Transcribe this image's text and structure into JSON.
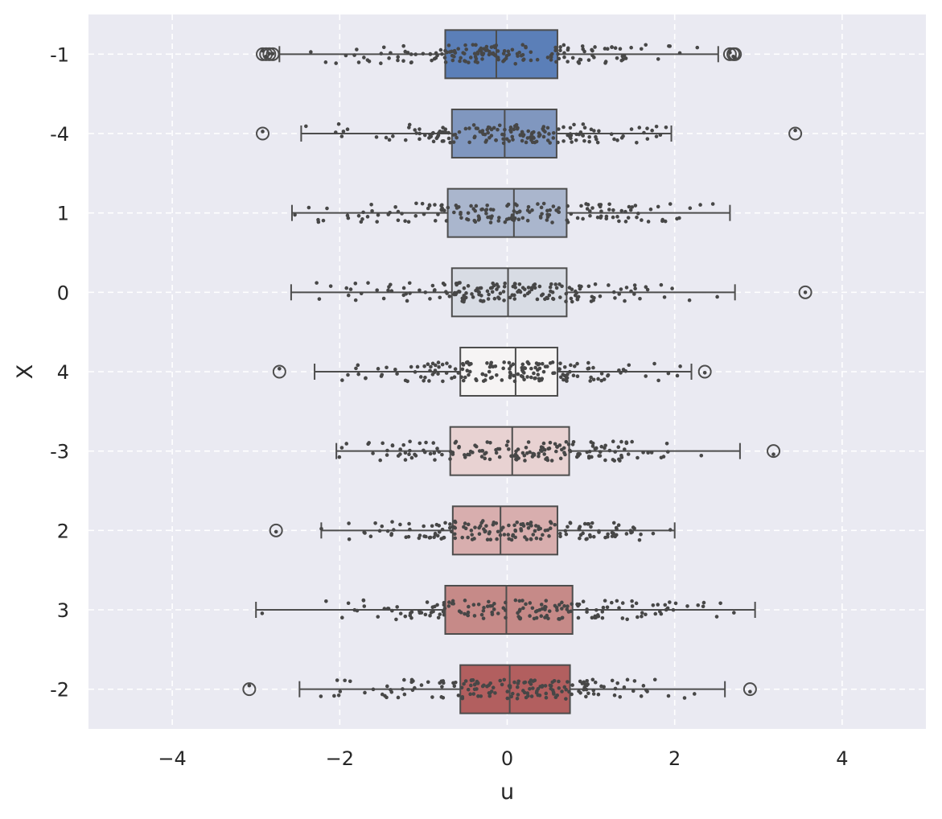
{
  "chart_data": {
    "type": "box",
    "orientation": "horizontal",
    "xlabel": "u",
    "ylabel": "X",
    "xlim": [
      -5,
      5
    ],
    "x_ticks": [
      -4,
      -2,
      0,
      2,
      4
    ],
    "x_tick_labels": [
      "−4",
      "−2",
      "0",
      "2",
      "4"
    ],
    "grid": true,
    "grid_style": "dashed",
    "background": "#eaeaf2",
    "strip_overlay": true,
    "categories": [
      "-1",
      "-4",
      "1",
      "0",
      "4",
      "-3",
      "2",
      "3",
      "-2"
    ],
    "boxes": [
      {
        "category": "-1",
        "q1": -0.74,
        "median": -0.13,
        "q3": 0.6,
        "whisker_low": -2.72,
        "whisker_high": 2.52,
        "outliers": [
          -2.92,
          -2.88,
          -2.84,
          -2.8,
          2.66,
          2.7,
          2.72
        ],
        "color": "#5b7fb8",
        "strip_range": [
          -2.72,
          2.52
        ]
      },
      {
        "category": "-4",
        "q1": -0.66,
        "median": -0.03,
        "q3": 0.59,
        "whisker_low": -2.46,
        "whisker_high": 1.96,
        "outliers": [
          -2.92,
          3.44
        ],
        "color": "#8097bf",
        "strip_range": [
          -2.46,
          1.96
        ]
      },
      {
        "category": "1",
        "q1": -0.71,
        "median": 0.08,
        "q3": 0.71,
        "whisker_low": -2.57,
        "whisker_high": 2.66,
        "outliers": [],
        "color": "#aab6cd",
        "strip_range": [
          -2.57,
          2.66
        ]
      },
      {
        "category": "0",
        "q1": -0.66,
        "median": 0.01,
        "q3": 0.71,
        "whisker_low": -2.58,
        "whisker_high": 2.72,
        "outliers": [
          3.56
        ],
        "color": "#d8dce4",
        "strip_range": [
          -2.58,
          2.72
        ]
      },
      {
        "category": "4",
        "q1": -0.56,
        "median": 0.1,
        "q3": 0.6,
        "whisker_low": -2.3,
        "whisker_high": 2.2,
        "outliers": [
          -2.72,
          2.36
        ],
        "color": "#f6f4f4",
        "strip_range": [
          -2.3,
          2.2
        ]
      },
      {
        "category": "-3",
        "q1": -0.68,
        "median": 0.06,
        "q3": 0.74,
        "whisker_low": -2.04,
        "whisker_high": 2.78,
        "outliers": [
          3.18
        ],
        "color": "#e8d2d2",
        "strip_range": [
          -2.04,
          2.78
        ]
      },
      {
        "category": "2",
        "q1": -0.65,
        "median": -0.08,
        "q3": 0.6,
        "whisker_low": -2.22,
        "whisker_high": 2.0,
        "outliers": [
          -2.76
        ],
        "color": "#d8aeae",
        "strip_range": [
          -2.22,
          2.0
        ]
      },
      {
        "category": "3",
        "q1": -0.74,
        "median": -0.01,
        "q3": 0.78,
        "whisker_low": -3.0,
        "whisker_high": 2.96,
        "outliers": [],
        "color": "#c68a88",
        "strip_range": [
          -3.0,
          2.96
        ]
      },
      {
        "category": "-2",
        "q1": -0.56,
        "median": 0.03,
        "q3": 0.75,
        "whisker_low": -2.48,
        "whisker_high": 2.6,
        "outliers": [
          -3.08,
          2.9
        ],
        "color": "#b25f5f",
        "strip_range": [
          -2.48,
          2.6
        ]
      }
    ]
  }
}
